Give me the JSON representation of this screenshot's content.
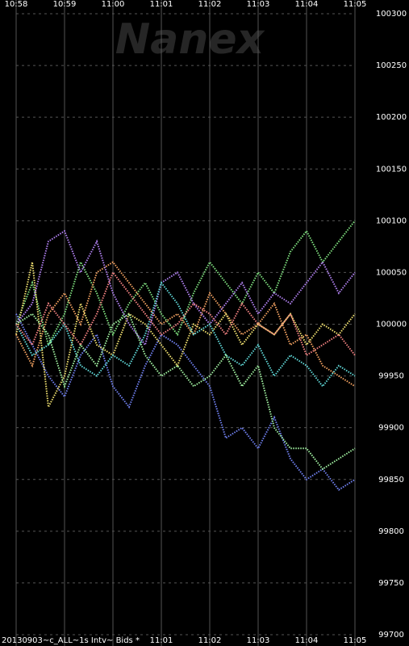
{
  "chart_data": {
    "type": "line",
    "watermark": "Nanex",
    "footer": "20130903~c_ALL~1s Intv~ Bids *",
    "x": [
      "10:58:00",
      "10:58:20",
      "10:58:40",
      "10:59:00",
      "10:59:20",
      "10:59:40",
      "11:00:00",
      "11:00:20",
      "11:00:40",
      "11:01:00",
      "11:01:20",
      "11:01:40",
      "11:02:00",
      "11:02:20",
      "11:02:40",
      "11:03:00",
      "11:03:20",
      "11:03:40",
      "11:04:00",
      "11:04:20",
      "11:04:40",
      "11:05:00"
    ],
    "xlim": [
      "10:58",
      "11:05"
    ],
    "xticks": [
      "10:58",
      "10:59",
      "11:00",
      "11:01",
      "11:02",
      "11:03",
      "11:04",
      "11:05"
    ],
    "ylim": [
      99700,
      100300
    ],
    "yticks": [
      100300,
      100250,
      100200,
      100150,
      100100,
      100050,
      100000,
      99950,
      99900,
      99850,
      99800,
      99750,
      99700
    ],
    "grid": true,
    "series": [
      {
        "color": "#7fe07f",
        "values": [
          100000,
          100040,
          99980,
          100010,
          100060,
          100030,
          99990,
          100020,
          100040,
          100010,
          99990,
          100030,
          100060,
          100040,
          100020,
          100050,
          100030,
          100070,
          100090,
          100060,
          100080,
          100100
        ]
      },
      {
        "color": "#f0a060",
        "values": [
          99990,
          99960,
          100010,
          100030,
          100000,
          100050,
          100060,
          100040,
          100020,
          100000,
          100010,
          99990,
          100030,
          100010,
          99990,
          100000,
          100020,
          99980,
          99990,
          99960,
          99950,
          99940
        ]
      },
      {
        "color": "#7080f0",
        "values": [
          100010,
          99980,
          99950,
          99930,
          99970,
          99990,
          99940,
          99920,
          99960,
          99990,
          99980,
          99960,
          99940,
          99890,
          99900,
          99880,
          99910,
          99870,
          99850,
          99860,
          99840,
          99850
        ]
      },
      {
        "color": "#f0e070",
        "values": [
          99990,
          100060,
          99920,
          99950,
          100020,
          99980,
          99970,
          100010,
          100000,
          99980,
          99960,
          100000,
          99990,
          100010,
          99980,
          100000,
          99990,
          100010,
          99980,
          100000,
          99990,
          100010
        ]
      },
      {
        "color": "#b080f0",
        "values": [
          100000,
          100020,
          100080,
          100090,
          100050,
          100080,
          100030,
          100000,
          99980,
          100040,
          100050,
          100020,
          100000,
          100020,
          100040,
          100010,
          100030,
          100020,
          100040,
          100060,
          100030,
          100050
        ]
      },
      {
        "color": "#60d8d8",
        "values": [
          100000,
          99970,
          99980,
          100000,
          99960,
          99950,
          99970,
          99960,
          99990,
          100040,
          100020,
          99990,
          100000,
          99970,
          99960,
          99980,
          99950,
          99970,
          99960,
          99940,
          99960,
          99950
        ]
      },
      {
        "color": "#a0f0a0",
        "values": [
          100000,
          100010,
          99990,
          99940,
          99980,
          99960,
          100000,
          100010,
          99970,
          99950,
          99960,
          99940,
          99950,
          99970,
          99940,
          99960,
          99900,
          99880,
          99880,
          99860,
          99870,
          99880
        ]
      },
      {
        "color": "#f08080",
        "values": [
          100000,
          99980,
          100020,
          100000,
          99980,
          100010,
          100050,
          100030,
          100010,
          99990,
          100000,
          100020,
          100010,
          99990,
          100020,
          100000,
          99990,
          100010,
          99970,
          99980,
          99990,
          99970
        ]
      }
    ]
  }
}
